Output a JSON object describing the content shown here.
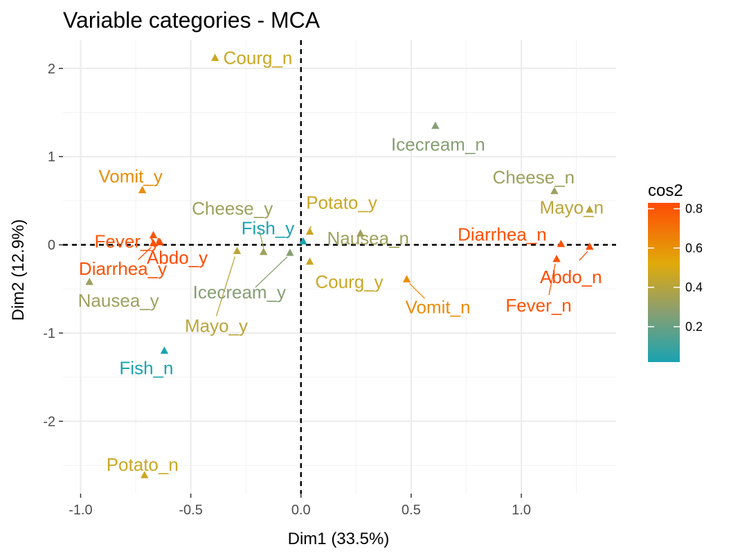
{
  "chart_data": {
    "type": "scatter",
    "title": "Variable categories - MCA",
    "xlabel": "Dim1 (33.5%)",
    "ylabel": "Dim2 (12.9%)",
    "xlim": [
      -1.08,
      1.43
    ],
    "ylim": [
      -2.82,
      2.32
    ],
    "xticks": [
      -1.0,
      -0.5,
      0.0,
      0.5,
      1.0
    ],
    "xtick_labels": [
      "-1.0",
      "-0.5",
      "0.0",
      "0.5",
      "1.0"
    ],
    "yticks": [
      -2,
      -1,
      0,
      1,
      2
    ],
    "ytick_labels": [
      "-2",
      "-1",
      "0",
      "1",
      "2"
    ],
    "grid": true,
    "reference_lines": {
      "x": 0,
      "y": 0,
      "style": "dashed"
    },
    "legend": {
      "title": "cos2",
      "placement": "right",
      "range": [
        0.02,
        0.83
      ],
      "ticks": [
        0.2,
        0.4,
        0.6,
        0.8
      ],
      "tick_labels": [
        "0.2",
        "0.4",
        "0.6",
        "0.8"
      ],
      "colors": [
        "#1aa3b1",
        "#8e9f6e",
        "#e0aa0a",
        "#ff4b05"
      ]
    },
    "points": [
      {
        "label": "Courg_n",
        "x": -0.39,
        "y": 2.12,
        "cos2": 0.46
      },
      {
        "label": "Icecream_n",
        "x": 0.61,
        "y": 1.35,
        "cos2": 0.27
      },
      {
        "label": "Cheese_n",
        "x": 1.15,
        "y": 0.61,
        "cos2": 0.33
      },
      {
        "label": "Mayo_n",
        "x": 1.31,
        "y": 0.4,
        "cos2": 0.41
      },
      {
        "label": "Vomit_y",
        "x": -0.72,
        "y": 0.62,
        "cos2": 0.62
      },
      {
        "label": "Cheese_y",
        "x": -0.17,
        "y": -0.08,
        "cos2": 0.33
      },
      {
        "label": "Potato_y",
        "x": 0.04,
        "y": 0.15,
        "cos2": 0.46
      },
      {
        "label": "Fever_y",
        "x": -0.67,
        "y": 0.11,
        "cos2": 0.8
      },
      {
        "label": "Fish_y",
        "x": 0.01,
        "y": 0.04,
        "cos2": 0.02
      },
      {
        "label": "Diarrhea_n",
        "x": 1.18,
        "y": 0.01,
        "cos2": 0.81
      },
      {
        "label": "Nausea_n",
        "x": 0.27,
        "y": 0.13,
        "cos2": 0.33
      },
      {
        "label": "Diarrhea_y",
        "x": -0.67,
        "y": 0.02,
        "cos2": 0.81
      },
      {
        "label": "Abdo_y",
        "x": -0.64,
        "y": 0.03,
        "cos2": 0.83
      },
      {
        "label": "Nausea_y",
        "x": -0.96,
        "y": -0.42,
        "cos2": 0.33
      },
      {
        "label": "Icecream_y",
        "x": -0.05,
        "y": -0.09,
        "cos2": 0.27
      },
      {
        "label": "Mayo_y",
        "x": -0.29,
        "y": -0.07,
        "cos2": 0.41
      },
      {
        "label": "Courg_y",
        "x": 0.04,
        "y": -0.19,
        "cos2": 0.46
      },
      {
        "label": "Vomit_n",
        "x": 0.48,
        "y": -0.39,
        "cos2": 0.62
      },
      {
        "label": "Abdo_n",
        "x": 1.31,
        "y": -0.02,
        "cos2": 0.83
      },
      {
        "label": "Fever_n",
        "x": 1.16,
        "y": -0.16,
        "cos2": 0.8
      },
      {
        "label": "Fish_n",
        "x": -0.62,
        "y": -1.2,
        "cos2": 0.02
      },
      {
        "label": "Potato_n",
        "x": -0.71,
        "y": -2.61,
        "cos2": 0.46
      }
    ]
  }
}
